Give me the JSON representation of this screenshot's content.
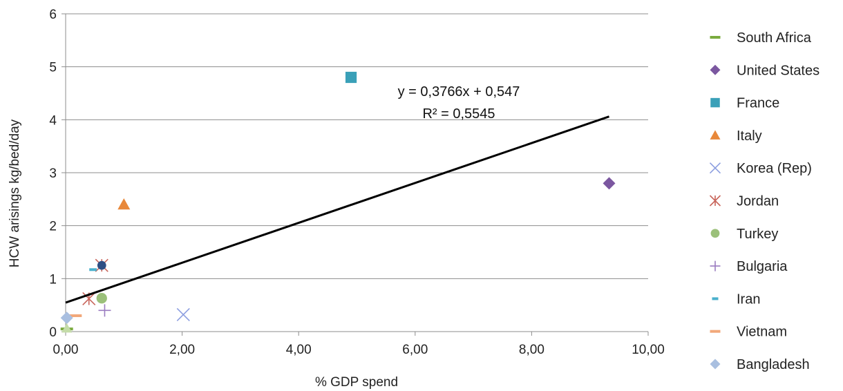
{
  "chart_data": {
    "type": "scatter",
    "xlabel": "% GDP spend",
    "ylabel": "HCW arisings  kg/bed/day",
    "xlim": [
      0,
      10
    ],
    "ylim": [
      0,
      6
    ],
    "x_ticks": [
      "0,00",
      "2,00",
      "4,00",
      "6,00",
      "8,00",
      "10,00"
    ],
    "y_ticks": [
      "0",
      "1",
      "2",
      "3",
      "4",
      "5",
      "6"
    ],
    "grid": "horizontal",
    "legend_position": "right",
    "series": [
      {
        "name": "South Africa",
        "marker": "dash",
        "color": "#7aab3e",
        "points": [
          [
            0.02,
            0.05
          ]
        ]
      },
      {
        "name": "United States",
        "marker": "diamond",
        "color": "#7b57a0",
        "points": [
          [
            9.33,
            2.8
          ]
        ]
      },
      {
        "name": "France",
        "marker": "square",
        "color": "#3aa0b8",
        "points": [
          [
            4.9,
            4.8
          ]
        ]
      },
      {
        "name": "Italy",
        "marker": "triangle",
        "color": "#e8883a",
        "points": [
          [
            1.0,
            2.4
          ]
        ]
      },
      {
        "name": "Korea (Rep)",
        "marker": "x",
        "color": "#8c9ee0",
        "points": [
          [
            2.02,
            0.32
          ]
        ]
      },
      {
        "name": "Jordan",
        "marker": "star",
        "color": "#c8645a",
        "points": [
          [
            0.4,
            0.62
          ],
          [
            0.62,
            1.25
          ]
        ]
      },
      {
        "name": "Turkey",
        "marker": "circle",
        "color": "#9bc07a",
        "points": [
          [
            0.62,
            0.63
          ]
        ]
      },
      {
        "name": "Bulgaria",
        "marker": "plus",
        "color": "#9a7cc0",
        "points": [
          [
            0.67,
            0.4
          ]
        ]
      },
      {
        "name": "Iran",
        "marker": "shortdash",
        "color": "#4ab0cc",
        "points": [
          [
            0.47,
            1.17
          ]
        ]
      },
      {
        "name": "Vietnam",
        "marker": "dash",
        "color": "#f2a87a",
        "points": [
          [
            0.17,
            0.3
          ]
        ]
      },
      {
        "name": "Bangladesh",
        "marker": "diamond",
        "color": "#a9bfe0",
        "points": [
          [
            0.02,
            0.26
          ]
        ]
      }
    ],
    "extra_points": [
      {
        "x": 0.62,
        "y": 1.25,
        "marker": "circle",
        "color": "#2e4f84"
      },
      {
        "x": 0.02,
        "y": 0.06,
        "marker": "triangle",
        "color": "#c4dca8"
      }
    ],
    "trendline": {
      "slope": 0.3766,
      "intercept": 0.547,
      "x_range": [
        0,
        9.33
      ],
      "color": "#000000"
    },
    "annotation": {
      "equation": "y = 0,3766x + 0,547",
      "r_squared": "R² = 0,5545"
    }
  }
}
